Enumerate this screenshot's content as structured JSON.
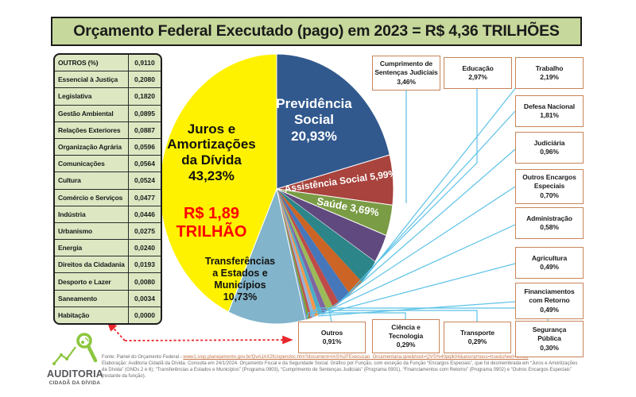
{
  "title": "Orçamento Federal Executado (pago) em 2023 = R$ 4,36 TRILHÕES",
  "outros_table": {
    "header": {
      "label": "OUTROS (%)",
      "value": "0,9110"
    },
    "rows": [
      {
        "label": "Essencial à Justiça",
        "value": "0,2080"
      },
      {
        "label": "Legislativa",
        "value": "0,1820"
      },
      {
        "label": "Gestão Ambiental",
        "value": "0,0895"
      },
      {
        "label": "Relações Exteriores",
        "value": "0,0887"
      },
      {
        "label": "Organização Agrária",
        "value": "0,0596"
      },
      {
        "label": "Comunicações",
        "value": "0,0564"
      },
      {
        "label": "Cultura",
        "value": "0,0524"
      },
      {
        "label": "Comércio e Serviços",
        "value": "0,0477"
      },
      {
        "label": "Indústria",
        "value": "0,0446"
      },
      {
        "label": "Urbanismo",
        "value": "0,0275"
      },
      {
        "label": "Energia",
        "value": "0,0240"
      },
      {
        "label": "Direitos da Cidadania",
        "value": "0,0193"
      },
      {
        "label": "Desporto e Lazer",
        "value": "0,0080"
      },
      {
        "label": "Saneamento",
        "value": "0,0034"
      },
      {
        "label": "Habitação",
        "value": "0,0000"
      }
    ]
  },
  "chart_data": {
    "type": "pie",
    "title": "Orçamento Federal Executado (pago) em 2023",
    "total": "R$ 4,36 TRILHÕES",
    "unit": "%",
    "start_angle_deg": 0,
    "direction": "clockwise",
    "slices": [
      {
        "id": "previdencia",
        "name": "Previdência Social",
        "value": 20.93,
        "label": "20,93%",
        "color": "#31598e"
      },
      {
        "id": "assistencia",
        "name": "Assistência Social",
        "value": 5.99,
        "label": "5,99%",
        "color": "#a8433d"
      },
      {
        "id": "saude",
        "name": "Saúde",
        "value": 3.69,
        "label": "3,69%",
        "color": "#7a9c45"
      },
      {
        "id": "cumprimento",
        "name": "Cumprimento de Sentenças Judiciais",
        "value": 3.46,
        "label": "3,46%",
        "color": "#5f497e"
      },
      {
        "id": "educacao",
        "name": "Educação",
        "value": 2.97,
        "label": "2,97%",
        "color": "#2c8588"
      },
      {
        "id": "trabalho",
        "name": "Trabalho",
        "value": 2.19,
        "label": "2,19%",
        "color": "#cc6425"
      },
      {
        "id": "defesa",
        "name": "Defesa Nacional",
        "value": 1.81,
        "label": "1,81%",
        "color": "#4677bb"
      },
      {
        "id": "judiciaria",
        "name": "Judiciária",
        "value": 0.96,
        "label": "0,96%",
        "color": "#be4b48"
      },
      {
        "id": "outros",
        "name": "Outros",
        "value": 0.91,
        "label": "0,91%",
        "color": "#9bbb59"
      },
      {
        "id": "outros-encargos",
        "name": "Outros Encargos Especiais",
        "value": 0.7,
        "label": "0,70%",
        "color": "#8064a2"
      },
      {
        "id": "administracao",
        "name": "Administração",
        "value": 0.58,
        "label": "0,58%",
        "color": "#4bacc6"
      },
      {
        "id": "agricultura",
        "name": "Agricultura",
        "value": 0.49,
        "label": "0,49%",
        "color": "#f79646"
      },
      {
        "id": "financiamentos",
        "name": "Financiamentos com Retorno",
        "value": 0.49,
        "label": "0,49%",
        "color": "#95b3d7"
      },
      {
        "id": "seguranca",
        "name": "Segurança Pública",
        "value": 0.3,
        "label": "0,30%",
        "color": "#c0504d"
      },
      {
        "id": "ciencia",
        "name": "Ciência e Tecnologia",
        "value": 0.29,
        "label": "0,29%",
        "color": "#77a033"
      },
      {
        "id": "transporte",
        "name": "Transporte",
        "value": 0.29,
        "label": "0,29%",
        "color": "#729aca"
      },
      {
        "id": "transferencias",
        "name": "Transferências a Estados e Municípios",
        "value": 10.73,
        "label": "10,73%",
        "color": "#82b4cb"
      },
      {
        "id": "juros",
        "name": "Juros e Amortizações da Dívida",
        "value": 43.23,
        "label": "43,23%",
        "color": "#fff200"
      }
    ]
  },
  "pie_labels": {
    "juros_title": "Juros e\nAmortizações\nda Dívida\n43,23%",
    "juros_amount": "R$ 1,89\nTRILHÃO",
    "previdencia": "Previdência\nSocial\n20,93%",
    "assistencia": "Assistência Social  5,99%",
    "saude": "Saúde  3,69%",
    "transferencias": "Transferências\na Estados e\nMunicípios\n10,73%"
  },
  "callouts": [
    {
      "id": "cumprimento",
      "name": "Cumprimento de\nSentenças Judiciais",
      "pct": "3,46%"
    },
    {
      "id": "educacao",
      "name": "Educação",
      "pct": "2,97%"
    },
    {
      "id": "trabalho",
      "name": "Trabalho",
      "pct": "2,19%"
    },
    {
      "id": "defesa",
      "name": "Defesa Nacional",
      "pct": "1,81%"
    },
    {
      "id": "judiciaria",
      "name": "Judiciária",
      "pct": "0,96%"
    },
    {
      "id": "outros-encargos",
      "name": "Outros Encargos\nEspeciais",
      "pct": "0,70%"
    },
    {
      "id": "administracao",
      "name": "Administração",
      "pct": "0,58%"
    },
    {
      "id": "agricultura",
      "name": "Agricultura",
      "pct": "0,49%"
    },
    {
      "id": "financiamentos",
      "name": "Financiamentos\ncom Retorno",
      "pct": "0,49%"
    },
    {
      "id": "seguranca",
      "name": "Segurança\nPública",
      "pct": "0,30%"
    },
    {
      "id": "outros",
      "name": "Outros",
      "pct": "0,91%"
    },
    {
      "id": "ciencia",
      "name": "Ciência e\nTecnologia",
      "pct": "0,29%"
    },
    {
      "id": "transporte",
      "name": "Transporte",
      "pct": "0,29%"
    }
  ],
  "footer": {
    "logo_line1": "AUDITORIA",
    "logo_line2": "CIDADÃ DA DÍVIDA",
    "source_prefix": "Fonte: Painel do Orçamento Federal - ",
    "source_url": "www1.siop.planejamento.gov.br/QvAJAX2fc/opendoc.htm?document=IAS%2FExecucao_Orcamentaria.qvw&host=QVS%40pqlk04&anonymous=true&sheet=SH06",
    "line2": "Elaboração: Auditoria Cidadã da Dívida. Consulta em 24/1/2024. Orçamento Fiscal e da Seguridade Social. Gráfico por Função, com exceção da Função “Encargos Especiais”, que foi desmembrada em “Juros e Amortizações",
    "line3": "da Dívida” (GNDs 2 e 6); “Transferências a Estados e Municípios” (Programa 0903), “Cumprimento de Sentenças Judiciais” (Programa 0901), “Financiamentos com Retorno” (Programa 0902) e “Outros Encargos Especiais”",
    "line4": "(restante da função)."
  }
}
